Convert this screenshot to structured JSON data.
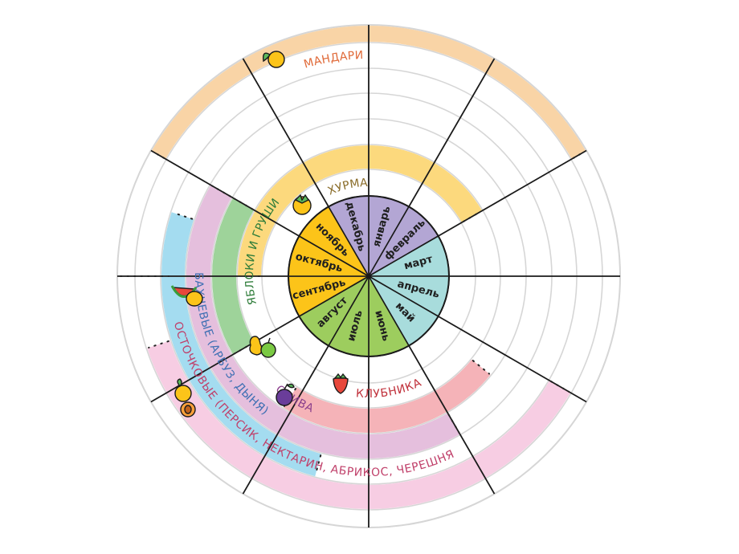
{
  "months": [
    {
      "label": "январь",
      "color": "#b3a6d4"
    },
    {
      "label": "февраль",
      "color": "#b3a6d4"
    },
    {
      "label": "март",
      "color": "#a8dcdc"
    },
    {
      "label": "апрель",
      "color": "#a8dcdc"
    },
    {
      "label": "май",
      "color": "#a8dcdc"
    },
    {
      "label": "июнь",
      "color": "#9dcd5e"
    },
    {
      "label": "июль",
      "color": "#9dcd5e"
    },
    {
      "label": "август",
      "color": "#9dcd5e"
    },
    {
      "label": "сентябрь",
      "color": "#fcc419"
    },
    {
      "label": "октябрь",
      "color": "#fcc419"
    },
    {
      "label": "ноябрь",
      "color": "#fcc419"
    },
    {
      "label": "декабрь",
      "color": "#b3a6d4"
    }
  ],
  "fruits": [
    {
      "id": "hurma",
      "label": "ХУРМА",
      "ring": 1,
      "start": 9,
      "end": 14,
      "color": "#fcd97d",
      "text_color": "#8a6d2a",
      "icon": "persimmon-icon"
    },
    {
      "id": "yabloki",
      "label": "ЯБЛОКИ И ГРУШИ",
      "ring": 2,
      "start": 8,
      "end": 10,
      "color": "#9ed39a",
      "text_color": "#2f7d3a",
      "icon": "apple-pear-icon"
    },
    {
      "id": "klubnika",
      "label": "КЛУБНИКА",
      "ring": 2,
      "start": 4.3,
      "end": 7.1,
      "color": "#f5b3b8",
      "text_color": "#c0313b",
      "icon": "strawberry-icon"
    },
    {
      "id": "sliva",
      "label": "СЛИВА",
      "ring": 3,
      "start": 5,
      "end": 10,
      "color": "#e5bfdd",
      "text_color": "#8b3f8c",
      "icon": "plum-icon"
    },
    {
      "id": "bahchevye",
      "label": "БАХЧЕВЫЕ (АРБУЗ, ДЫНЯ)",
      "ring": 4,
      "start": 6.5,
      "end": 9.6,
      "color": "#a4dcf0",
      "text_color": "#3e6fb3",
      "icon": "watermelon-icon"
    },
    {
      "id": "kostochkovye",
      "label": "КОСТОЧКОВЫЕ (ПЕРСИК, НЕКТАРИН, АБРИКОС, ЧЕРЕШНЯ)",
      "ring": 5,
      "start": 4,
      "end": 8.4,
      "color": "#f7cde3",
      "text_color": "#c0406a",
      "icon": "peach-apricot-icon"
    },
    {
      "id": "mandarin",
      "label": "МАНДАРИН",
      "ring": 6,
      "start": 10,
      "end": 14,
      "color": "#f9d4a6",
      "text_color": "#e06b3a",
      "icon": "mandarin-icon"
    }
  ]
}
